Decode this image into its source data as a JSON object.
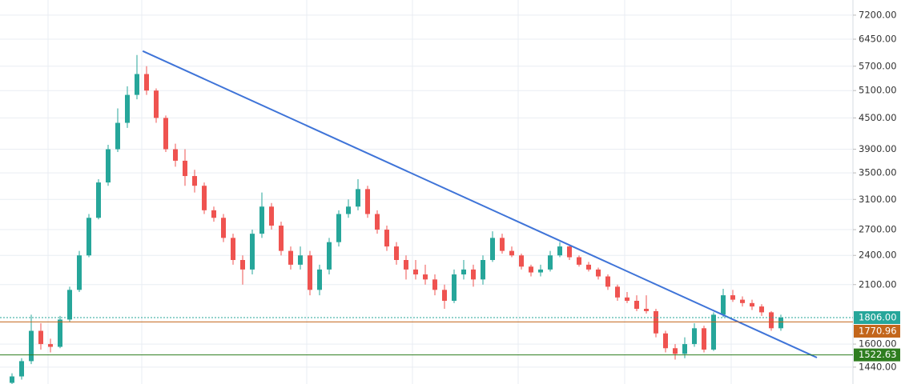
{
  "chart_data": {
    "type": "candlestick",
    "log_scale": true,
    "grid": true,
    "up_color": "#26a69a",
    "down_color": "#ef5350",
    "ylim": [
      1333,
      7716
    ],
    "yticks": [
      {
        "value": 7200,
        "label": "7200.00"
      },
      {
        "value": 6450,
        "label": "6450.00"
      },
      {
        "value": 5700,
        "label": "5700.00"
      },
      {
        "value": 5100,
        "label": "5100.00"
      },
      {
        "value": 4500,
        "label": "4500.00"
      },
      {
        "value": 3900,
        "label": "3900.00"
      },
      {
        "value": 3500,
        "label": "3500.00"
      },
      {
        "value": 3100,
        "label": "3100.00"
      },
      {
        "value": 2700,
        "label": "2700.00"
      },
      {
        "value": 2400,
        "label": "2400.00"
      },
      {
        "value": 2100,
        "label": "2100.00"
      },
      {
        "value": 1600,
        "label": "1600.00"
      },
      {
        "value": 1440,
        "label": "1440.00"
      }
    ],
    "open": [
      1340,
      1380,
      1480,
      1700,
      1600,
      1580,
      1790,
      2050,
      2400,
      2850,
      3350,
      3900,
      4400,
      5000,
      5500,
      5100,
      4500,
      3900,
      3700,
      3450,
      3300,
      2950,
      2850,
      2600,
      2350,
      2250,
      2650,
      3000,
      2750,
      2450,
      2300,
      2400,
      2050,
      2250,
      2550,
      2900,
      3000,
      3250,
      2900,
      2700,
      2500,
      2350,
      2250,
      2200,
      2150,
      2050,
      1950,
      2200,
      2250,
      2150,
      2350,
      2600,
      2450,
      2400,
      2280,
      2220,
      2250,
      2400,
      2500,
      2380,
      2300,
      2250,
      2180,
      2080,
      1980,
      1950,
      1880,
      1860,
      1680,
      1570,
      1530,
      1600,
      1720,
      1560,
      1830,
      2000,
      1960,
      1930,
      1900,
      1850,
      1720
    ],
    "high": [
      1400,
      1500,
      1830,
      1760,
      1640,
      1820,
      2080,
      2450,
      2900,
      3400,
      3980,
      4700,
      5200,
      6000,
      5700,
      5150,
      4550,
      4000,
      3900,
      3550,
      3350,
      3000,
      2900,
      2650,
      2400,
      2700,
      3200,
      3050,
      2800,
      2500,
      2500,
      2450,
      2300,
      2600,
      2950,
      3100,
      3400,
      3300,
      2950,
      2750,
      2550,
      2400,
      2350,
      2300,
      2200,
      2100,
      2250,
      2350,
      2300,
      2400,
      2680,
      2650,
      2500,
      2420,
      2300,
      2300,
      2450,
      2550,
      2520,
      2400,
      2330,
      2270,
      2200,
      2100,
      2030,
      2000,
      2000,
      1880,
      1700,
      1600,
      1650,
      1760,
      1740,
      1850,
      2060,
      2050,
      1990,
      1960,
      1920,
      1860,
      1830
    ],
    "low": [
      1320,
      1360,
      1460,
      1560,
      1540,
      1570,
      1770,
      2030,
      2380,
      2830,
      3300,
      3850,
      4300,
      4900,
      5000,
      4400,
      3850,
      3600,
      3300,
      3200,
      2900,
      2800,
      2550,
      2300,
      2100,
      2200,
      2600,
      2700,
      2400,
      2250,
      2250,
      2000,
      2000,
      2200,
      2500,
      2850,
      2950,
      2850,
      2650,
      2450,
      2300,
      2150,
      2150,
      2100,
      2000,
      1880,
      1930,
      2150,
      2080,
      2100,
      2330,
      2420,
      2380,
      2250,
      2180,
      2180,
      2230,
      2380,
      2350,
      2280,
      2230,
      2150,
      2050,
      1950,
      1930,
      1860,
      1840,
      1650,
      1540,
      1490,
      1500,
      1580,
      1540,
      1550,
      1810,
      1940,
      1900,
      1870,
      1820,
      1700,
      1700
    ],
    "close": [
      1380,
      1480,
      1700,
      1600,
      1580,
      1790,
      2050,
      2400,
      2850,
      3350,
      3900,
      4400,
      5000,
      5500,
      5100,
      4500,
      3900,
      3700,
      3450,
      3300,
      2950,
      2850,
      2600,
      2350,
      2250,
      2650,
      3000,
      2750,
      2450,
      2300,
      2400,
      2050,
      2250,
      2550,
      2900,
      3000,
      3250,
      2900,
      2700,
      2500,
      2350,
      2250,
      2200,
      2150,
      2050,
      1950,
      2200,
      2250,
      2150,
      2350,
      2600,
      2450,
      2400,
      2280,
      2220,
      2250,
      2400,
      2500,
      2380,
      2300,
      2250,
      2180,
      2080,
      1980,
      1950,
      1880,
      1860,
      1680,
      1570,
      1530,
      1600,
      1720,
      1560,
      1830,
      2000,
      1960,
      1930,
      1900,
      1850,
      1720,
      1806
    ],
    "price_lines": [
      {
        "value": 1806,
        "label": "1806.00",
        "color": "#26a69a",
        "style": "dotted"
      },
      {
        "value": 1770.96,
        "label": "1770.96",
        "color": "#c3661b",
        "style": "solid"
      },
      {
        "value": 1522.63,
        "label": "1522.63",
        "color": "#2e7d1f",
        "style": "solid"
      }
    ],
    "trendline": {
      "x": [
        13.6,
        83.75
      ],
      "values": [
        6110,
        1504
      ],
      "color": "#3f74d8"
    }
  }
}
